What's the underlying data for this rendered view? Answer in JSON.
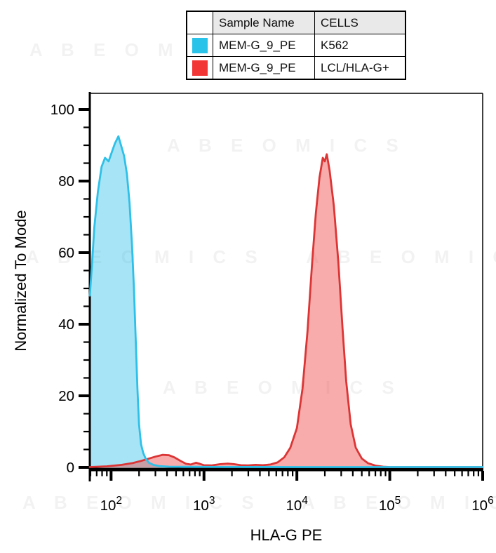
{
  "watermark": {
    "text": "A B E O M I C S"
  },
  "legend": {
    "headers": [
      "",
      "Sample Name",
      "CELLS"
    ],
    "rows": [
      {
        "swatch": "#29C3EA",
        "sample": "MEM-G_9_PE",
        "cells": "K562"
      },
      {
        "swatch": "#F23535",
        "sample": "MEM-G_9_PE",
        "cells": "LCL/HLA-G+"
      }
    ]
  },
  "chart_data": {
    "type": "area",
    "subtype": "flow-cytometry-histogram-overlay",
    "title": "",
    "xlabel": "HLA-G PE",
    "ylabel": "Normalized To Mode",
    "x_scale": "log",
    "x_range": [
      59,
      1000000
    ],
    "ylim": [
      0,
      104.5
    ],
    "y_ticks": [
      0,
      20,
      40,
      60,
      80,
      100
    ],
    "y_minor_step": 5,
    "x_tick_exponents": [
      2,
      3,
      4,
      5,
      6
    ],
    "grid": false,
    "legend_position": "top-center",
    "series": [
      {
        "name": "MEM-G_9_PE",
        "cells": "K562",
        "stroke": "#2EC0E8",
        "fill": "rgba(46,191,232,0.42)",
        "peak": {
          "x": 120,
          "y": 92.5
        },
        "points": [
          [
            59,
            48
          ],
          [
            62,
            56
          ],
          [
            66,
            67
          ],
          [
            72,
            77
          ],
          [
            79,
            84
          ],
          [
            86,
            86.5
          ],
          [
            90,
            86
          ],
          [
            94,
            85.5
          ],
          [
            100,
            87.5
          ],
          [
            110,
            90.5
          ],
          [
            120,
            92.5
          ],
          [
            128,
            90
          ],
          [
            138,
            87
          ],
          [
            148,
            82
          ],
          [
            158,
            74
          ],
          [
            168,
            62
          ],
          [
            176,
            50
          ],
          [
            184,
            36
          ],
          [
            192,
            22
          ],
          [
            200,
            12
          ],
          [
            210,
            6.5
          ],
          [
            222,
            4
          ],
          [
            235,
            2.5
          ],
          [
            255,
            1.3
          ],
          [
            285,
            0.7
          ],
          [
            330,
            0.35
          ],
          [
            420,
            0.2
          ],
          [
            600,
            0.15
          ],
          [
            1500,
            0.12
          ],
          [
            10000,
            0.1
          ],
          [
            100000,
            0.1
          ],
          [
            1000000,
            0.1
          ]
        ]
      },
      {
        "name": "MEM-G_9_PE",
        "cells": "LCL/HLA-G+",
        "stroke": "#DC3535",
        "fill": "rgba(240,70,70,0.45)",
        "peak": {
          "x": 21000,
          "y": 87.5
        },
        "points": [
          [
            59,
            0.1
          ],
          [
            90,
            0.3
          ],
          [
            130,
            0.7
          ],
          [
            170,
            1.2
          ],
          [
            210,
            1.8
          ],
          [
            250,
            2.4
          ],
          [
            300,
            3.0
          ],
          [
            360,
            3.5
          ],
          [
            420,
            3.4
          ],
          [
            480,
            2.8
          ],
          [
            560,
            1.8
          ],
          [
            640,
            1.0
          ],
          [
            720,
            0.8
          ],
          [
            820,
            1.3
          ],
          [
            900,
            1.0
          ],
          [
            1000,
            0.6
          ],
          [
            1200,
            0.55
          ],
          [
            1500,
            0.9
          ],
          [
            1800,
            1.05
          ],
          [
            2100,
            0.9
          ],
          [
            2500,
            0.6
          ],
          [
            3000,
            0.55
          ],
          [
            3600,
            0.7
          ],
          [
            4300,
            0.6
          ],
          [
            5200,
            0.8
          ],
          [
            6200,
            1.4
          ],
          [
            7300,
            2.8
          ],
          [
            8500,
            5.5
          ],
          [
            10000,
            11
          ],
          [
            11500,
            22
          ],
          [
            13000,
            38
          ],
          [
            14500,
            56
          ],
          [
            16000,
            71
          ],
          [
            17500,
            81
          ],
          [
            19000,
            86.5
          ],
          [
            20000,
            85.5
          ],
          [
            21000,
            87.5
          ],
          [
            22500,
            83
          ],
          [
            25000,
            73
          ],
          [
            28000,
            57
          ],
          [
            31000,
            39
          ],
          [
            34000,
            24
          ],
          [
            38000,
            12
          ],
          [
            43000,
            5.5
          ],
          [
            50000,
            2.5
          ],
          [
            58000,
            1.2
          ],
          [
            70000,
            0.5
          ],
          [
            85000,
            0.2
          ],
          [
            100000,
            0.1
          ],
          [
            1000000,
            0.05
          ]
        ]
      }
    ]
  }
}
